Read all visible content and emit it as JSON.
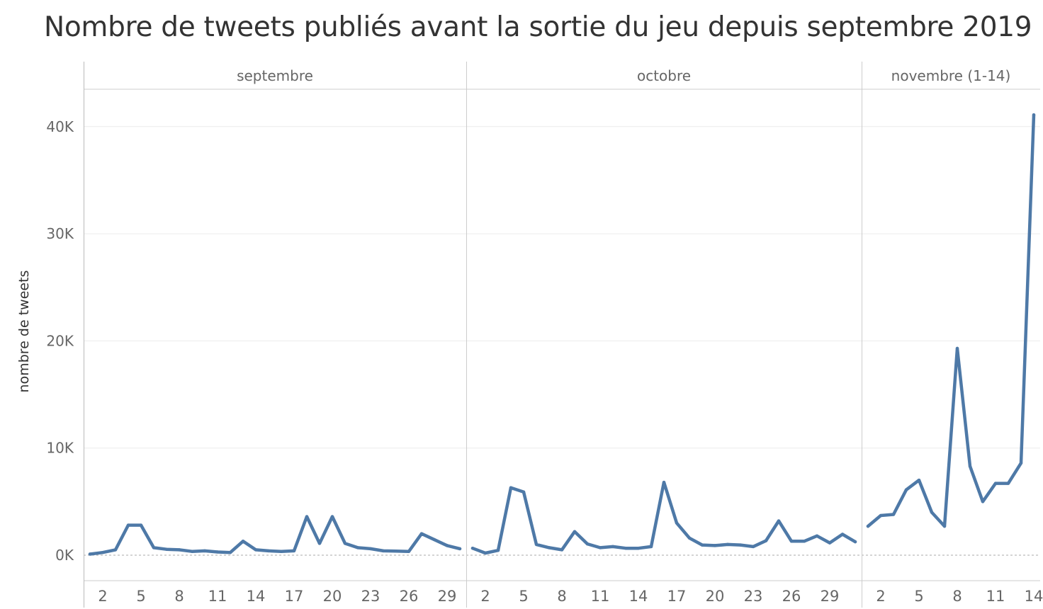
{
  "chart_data": {
    "type": "line",
    "title": "Nombre de tweets publiés avant la sortie du jeu depuis septembre 2019",
    "ylabel": "nombre de tweets",
    "xlabel": "",
    "ylim": [
      0,
      43000
    ],
    "y_ticks": [
      0,
      10000,
      20000,
      30000,
      40000
    ],
    "y_tick_labels": [
      "0K",
      "10K",
      "20K",
      "30K",
      "40K"
    ],
    "grid": true,
    "color": "#4e79a7",
    "panels": [
      {
        "label": "septembre",
        "days": 30,
        "x_ticks": [
          2,
          5,
          8,
          11,
          14,
          17,
          20,
          23,
          26,
          29
        ],
        "x": [
          1,
          2,
          3,
          4,
          5,
          6,
          7,
          8,
          9,
          10,
          11,
          12,
          13,
          14,
          15,
          16,
          17,
          18,
          19,
          20,
          21,
          22,
          23,
          24,
          25,
          26,
          27,
          28,
          29,
          30
        ],
        "values": [
          100,
          250,
          500,
          2800,
          2800,
          700,
          550,
          500,
          350,
          400,
          300,
          250,
          1300,
          500,
          400,
          350,
          400,
          3600,
          1100,
          3600,
          1100,
          700,
          600,
          400,
          380,
          350,
          2000,
          1450,
          900,
          600
        ]
      },
      {
        "label": "octobre",
        "days": 31,
        "x_ticks": [
          2,
          5,
          8,
          11,
          14,
          17,
          20,
          23,
          26,
          29
        ],
        "x": [
          1,
          2,
          3,
          4,
          5,
          6,
          7,
          8,
          9,
          10,
          11,
          12,
          13,
          14,
          15,
          16,
          17,
          18,
          19,
          20,
          21,
          22,
          23,
          24,
          25,
          26,
          27,
          28,
          29,
          30,
          31
        ],
        "values": [
          650,
          200,
          450,
          6300,
          5900,
          1000,
          700,
          500,
          2200,
          1050,
          700,
          800,
          650,
          650,
          800,
          6800,
          3000,
          1600,
          950,
          900,
          1000,
          950,
          800,
          1350,
          3200,
          1300,
          1300,
          1800,
          1150,
          1950,
          1250
        ]
      },
      {
        "label": "novembre (1-14)",
        "days": 14,
        "x_ticks": [
          2,
          5,
          8,
          11,
          14
        ],
        "x": [
          1,
          2,
          3,
          4,
          5,
          6,
          7,
          8,
          9,
          10,
          11,
          12,
          13,
          14
        ],
        "values": [
          2700,
          3700,
          3800,
          6100,
          7000,
          4000,
          2700,
          19300,
          8300,
          5000,
          6700,
          6700,
          8600,
          41100
        ]
      }
    ]
  }
}
